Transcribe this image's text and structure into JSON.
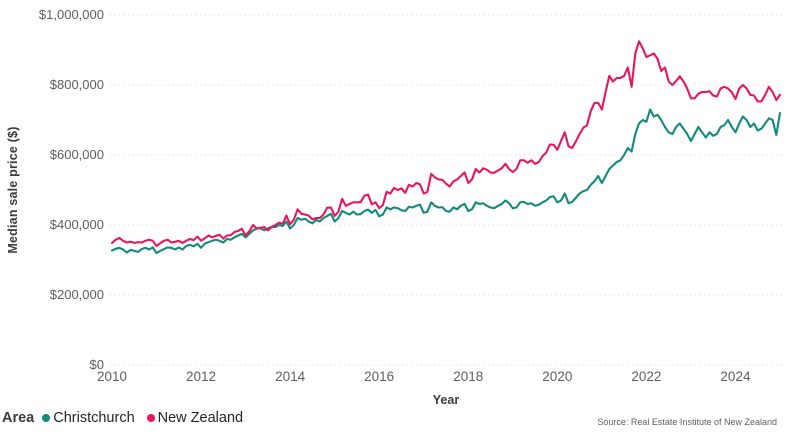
{
  "source_note": "Source: Real Estate Institute of New Zealand",
  "chart_data": {
    "type": "line",
    "title": "",
    "xlabel": "Year",
    "ylabel": "Median sale price ($)",
    "ylim": [
      0,
      1000000
    ],
    "grid": "horizontal-dotted",
    "grid_color": "#d6d6d6",
    "axis_text_color": "#605e5c",
    "legend_position": "bottom-left",
    "legend_title": "Area",
    "x_start": "2010-01",
    "x_end": "2025-01",
    "x_frequency": "monthly",
    "xticks": [
      2010,
      2012,
      2014,
      2016,
      2018,
      2020,
      2022,
      2024
    ],
    "yticks": [
      {
        "value": 0,
        "label": "$0"
      },
      {
        "value": 200000,
        "label": "$200,000"
      },
      {
        "value": 400000,
        "label": "$400,000"
      },
      {
        "value": 600000,
        "label": "$600,000"
      },
      {
        "value": 800000,
        "label": "$800,000"
      },
      {
        "value": 1000000,
        "label": "$1,000,000"
      }
    ],
    "series": [
      {
        "name": "Christchurch",
        "color": "#128a7c",
        "values": [
          327000,
          332000,
          335000,
          330000,
          321000,
          329000,
          326000,
          323000,
          331000,
          335000,
          330000,
          336000,
          320000,
          326000,
          331000,
          336000,
          335000,
          330000,
          336000,
          330000,
          340000,
          343000,
          339000,
          346000,
          335000,
          347000,
          351000,
          355000,
          358000,
          355000,
          350000,
          360000,
          358000,
          365000,
          370000,
          375000,
          365000,
          375000,
          385000,
          390000,
          391000,
          385000,
          390000,
          395000,
          394000,
          400000,
          397000,
          410000,
          390000,
          400000,
          420000,
          415000,
          418000,
          410000,
          405000,
          415000,
          410000,
          420000,
          426000,
          432000,
          410000,
          420000,
          440000,
          435000,
          430000,
          438000,
          430000,
          431000,
          440000,
          444000,
          435000,
          443000,
          425000,
          430000,
          450000,
          445000,
          450000,
          448000,
          442000,
          440000,
          452000,
          450000,
          455000,
          458000,
          435000,
          438000,
          465000,
          455000,
          450000,
          451000,
          440000,
          438000,
          450000,
          445000,
          455000,
          460000,
          440000,
          445000,
          465000,
          460000,
          462000,
          455000,
          450000,
          448000,
          455000,
          460000,
          470000,
          462000,
          448000,
          450000,
          465000,
          466000,
          460000,
          462000,
          455000,
          458000,
          465000,
          470000,
          480000,
          482000,
          465000,
          470000,
          490000,
          462000,
          466000,
          478000,
          490000,
          497000,
          500000,
          515000,
          525000,
          540000,
          520000,
          540000,
          560000,
          570000,
          580000,
          585000,
          600000,
          620000,
          610000,
          660000,
          690000,
          700000,
          695000,
          730000,
          710000,
          715000,
          700000,
          680000,
          665000,
          660000,
          680000,
          690000,
          675000,
          660000,
          640000,
          660000,
          680000,
          665000,
          650000,
          665000,
          655000,
          660000,
          680000,
          685000,
          700000,
          680000,
          665000,
          690000,
          710000,
          700000,
          680000,
          690000,
          670000,
          675000,
          690000,
          705000,
          700000,
          657000,
          720000
        ]
      },
      {
        "name": "New Zealand",
        "color": "#e8175c",
        "values": [
          349000,
          358000,
          363000,
          355000,
          350000,
          352000,
          349000,
          351000,
          350000,
          355000,
          358000,
          355000,
          340000,
          348000,
          355000,
          358000,
          350000,
          352000,
          355000,
          349000,
          355000,
          360000,
          357000,
          367000,
          355000,
          362000,
          370000,
          365000,
          369000,
          372000,
          361000,
          370000,
          371000,
          380000,
          383000,
          389000,
          370000,
          382000,
          400000,
          390000,
          392000,
          394000,
          385000,
          394000,
          400000,
          407000,
          403000,
          427000,
          402000,
          415000,
          445000,
          432000,
          430000,
          427000,
          416000,
          420000,
          420000,
          430000,
          449000,
          450000,
          426000,
          438000,
          475000,
          455000,
          460000,
          465000,
          465000,
          465000,
          484000,
          487000,
          459000,
          465000,
          448000,
          457000,
          495000,
          490000,
          506000,
          500000,
          505000,
          492000,
          515000,
          510000,
          520000,
          516000,
          490000,
          495000,
          546000,
          536000,
          530000,
          529000,
          518000,
          510000,
          525000,
          530000,
          540000,
          550000,
          520000,
          530000,
          560000,
          550000,
          562000,
          558000,
          550000,
          549000,
          556000,
          562000,
          575000,
          560000,
          551000,
          560000,
          585000,
          585000,
          578000,
          585000,
          575000,
          580000,
          597000,
          607000,
          630000,
          629000,
          615000,
          640000,
          665000,
          625000,
          620000,
          639000,
          660000,
          678000,
          685000,
          725000,
          749000,
          749000,
          730000,
          780000,
          826000,
          810000,
          820000,
          820000,
          826000,
          850000,
          795000,
          890000,
          925000,
          905000,
          880000,
          885000,
          890000,
          875000,
          840000,
          850000,
          810000,
          800000,
          811000,
          825000,
          810000,
          790000,
          762000,
          762000,
          775000,
          780000,
          780000,
          782000,
          770000,
          767000,
          790000,
          795000,
          790000,
          779000,
          760000,
          790000,
          800000,
          790000,
          772000,
          770000,
          753000,
          753000,
          772000,
          795000,
          780000,
          757000,
          772000
        ]
      }
    ]
  }
}
